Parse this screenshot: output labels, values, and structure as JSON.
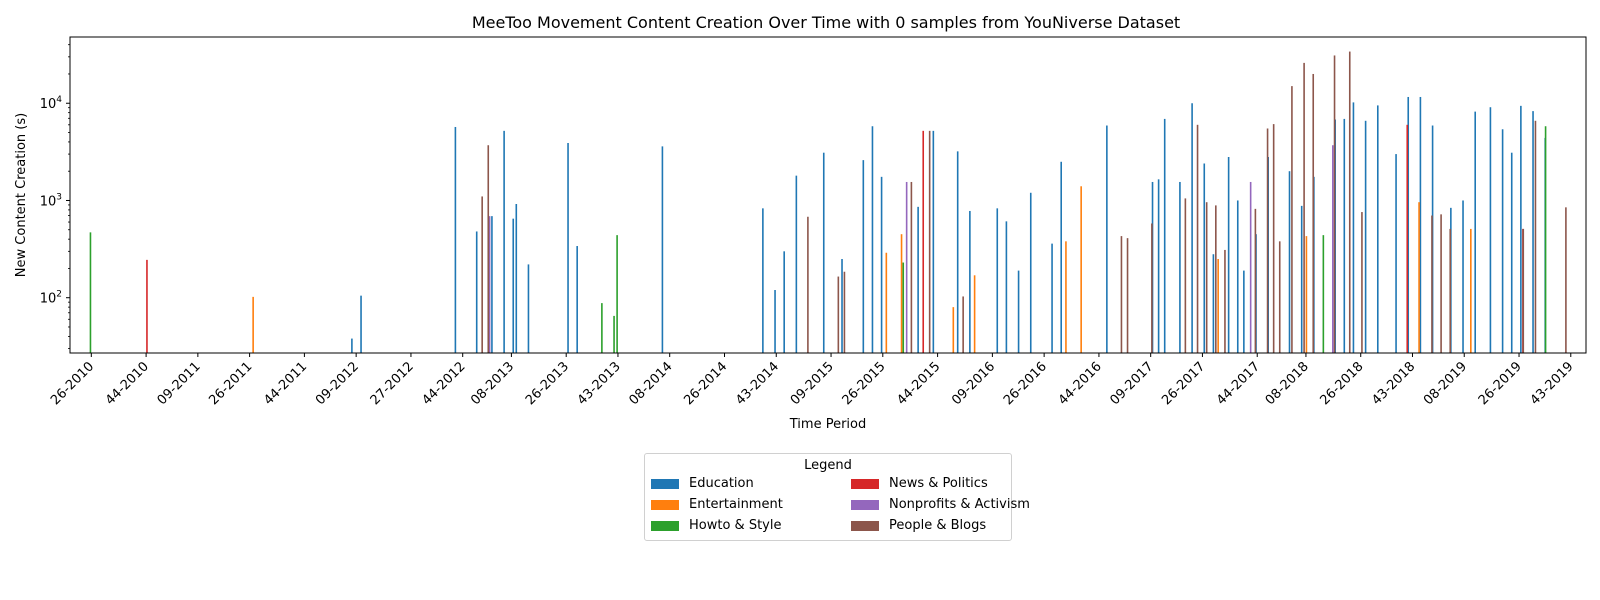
{
  "colors": {
    "Education": "#1f77b4",
    "Entertainment": "#ff7f0e",
    "Howto & Style": "#2ca02c",
    "News & Politics": "#d62728",
    "Nonprofits & Activism": "#9467bd",
    "People & Blogs": "#8c564b"
  },
  "chart_data": {
    "type": "bar",
    "title": "MeeToo Movement Content Creation Over Time with 0 samples from YouNiverse Dataset",
    "xlabel": "Time Period",
    "ylabel": "New Content Creation (s)",
    "yscale": "log",
    "ylim": [
      27,
      48000
    ],
    "yticks": [
      {
        "value": 100,
        "base": "10",
        "exp": "2"
      },
      {
        "value": 1000,
        "base": "10",
        "exp": "3"
      },
      {
        "value": 10000,
        "base": "10",
        "exp": "4"
      }
    ],
    "x_start": "2010-05-10",
    "x_end": "2019-11-25",
    "xticks": [
      {
        "label": "26-2010",
        "date": "2010-06-28"
      },
      {
        "label": "44-2010",
        "date": "2010-11-01"
      },
      {
        "label": "09-2011",
        "date": "2011-02-28"
      },
      {
        "label": "26-2011",
        "date": "2011-06-27"
      },
      {
        "label": "44-2011",
        "date": "2011-10-31"
      },
      {
        "label": "09-2012",
        "date": "2012-02-27"
      },
      {
        "label": "27-2012",
        "date": "2012-07-02"
      },
      {
        "label": "44-2012",
        "date": "2012-10-29"
      },
      {
        "label": "08-2013",
        "date": "2013-02-18"
      },
      {
        "label": "26-2013",
        "date": "2013-06-24"
      },
      {
        "label": "43-2013",
        "date": "2013-10-21"
      },
      {
        "label": "08-2014",
        "date": "2014-02-17"
      },
      {
        "label": "26-2014",
        "date": "2014-06-23"
      },
      {
        "label": "43-2014",
        "date": "2014-10-20"
      },
      {
        "label": "09-2015",
        "date": "2015-02-23"
      },
      {
        "label": "26-2015",
        "date": "2015-06-22"
      },
      {
        "label": "44-2015",
        "date": "2015-10-26"
      },
      {
        "label": "09-2016",
        "date": "2016-02-29"
      },
      {
        "label": "26-2016",
        "date": "2016-06-27"
      },
      {
        "label": "44-2016",
        "date": "2016-10-31"
      },
      {
        "label": "09-2017",
        "date": "2017-02-27"
      },
      {
        "label": "26-2017",
        "date": "2017-06-26"
      },
      {
        "label": "44-2017",
        "date": "2017-10-30"
      },
      {
        "label": "08-2018",
        "date": "2018-02-19"
      },
      {
        "label": "26-2018",
        "date": "2018-06-25"
      },
      {
        "label": "43-2018",
        "date": "2018-10-22"
      },
      {
        "label": "08-2019",
        "date": "2019-02-18"
      },
      {
        "label": "26-2019",
        "date": "2019-06-24"
      },
      {
        "label": "43-2019",
        "date": "2019-10-21"
      }
    ],
    "legend_title": "Legend",
    "legend_placement": "below chart, center",
    "series": [
      {
        "name": "Education",
        "points": [
          [
            "2012-02-27",
            38
          ],
          [
            "2012-03-19",
            105
          ],
          [
            "2012-10-22",
            5700
          ],
          [
            "2012-12-10",
            480
          ],
          [
            "2013-01-14",
            690
          ],
          [
            "2013-02-11",
            5200
          ],
          [
            "2013-03-04",
            650
          ],
          [
            "2013-03-11",
            920
          ],
          [
            "2013-04-08",
            220
          ],
          [
            "2013-07-08",
            3900
          ],
          [
            "2013-07-29",
            340
          ],
          [
            "2014-02-10",
            3600
          ],
          [
            "2014-09-29",
            830
          ],
          [
            "2014-10-27",
            120
          ],
          [
            "2014-11-17",
            300
          ],
          [
            "2014-12-15",
            1800
          ],
          [
            "2015-02-16",
            3100
          ],
          [
            "2015-03-30",
            250
          ],
          [
            "2015-05-18",
            2600
          ],
          [
            "2015-06-08",
            5800
          ],
          [
            "2015-06-29",
            1750
          ],
          [
            "2015-09-21",
            860
          ],
          [
            "2015-10-26",
            5200
          ],
          [
            "2015-12-21",
            3200
          ],
          [
            "2016-01-18",
            780
          ],
          [
            "2016-03-21",
            830
          ],
          [
            "2016-04-11",
            610
          ],
          [
            "2016-05-09",
            190
          ],
          [
            "2016-06-06",
            1200
          ],
          [
            "2016-07-25",
            360
          ],
          [
            "2016-08-15",
            2500
          ],
          [
            "2016-11-28",
            5900
          ],
          [
            "2017-03-13",
            1550
          ],
          [
            "2017-03-27",
            1650
          ],
          [
            "2017-04-10",
            6900
          ],
          [
            "2017-05-15",
            1550
          ],
          [
            "2017-06-12",
            10000
          ],
          [
            "2017-07-10",
            2400
          ],
          [
            "2017-07-31",
            280
          ],
          [
            "2017-09-04",
            2800
          ],
          [
            "2017-09-25",
            1000
          ],
          [
            "2017-10-09",
            190
          ],
          [
            "2017-11-06",
            450
          ],
          [
            "2017-12-04",
            2800
          ],
          [
            "2018-01-22",
            2000
          ],
          [
            "2018-02-19",
            880
          ],
          [
            "2018-03-19",
            1750
          ],
          [
            "2018-05-07",
            6800
          ],
          [
            "2018-05-28",
            6900
          ],
          [
            "2018-06-18",
            10200
          ],
          [
            "2018-07-16",
            6600
          ],
          [
            "2018-08-13",
            9500
          ],
          [
            "2018-09-24",
            3000
          ],
          [
            "2018-10-22",
            11600
          ],
          [
            "2018-11-19",
            11600
          ],
          [
            "2018-12-17",
            5900
          ],
          [
            "2019-01-28",
            840
          ],
          [
            "2019-02-25",
            1000
          ],
          [
            "2019-03-25",
            8200
          ],
          [
            "2019-04-29",
            9100
          ],
          [
            "2019-05-27",
            5400
          ],
          [
            "2019-06-17",
            3100
          ],
          [
            "2019-07-08",
            9400
          ],
          [
            "2019-08-05",
            8300
          ],
          [
            "2019-09-02",
            4400
          ]
        ]
      },
      {
        "name": "Entertainment",
        "points": [
          [
            "2011-07-11",
            102
          ],
          [
            "2015-07-06",
            290
          ],
          [
            "2015-08-10",
            450
          ],
          [
            "2015-12-07",
            80
          ],
          [
            "2016-01-25",
            170
          ],
          [
            "2016-08-22",
            380
          ],
          [
            "2016-09-26",
            1400
          ],
          [
            "2017-08-07",
            250
          ],
          [
            "2018-02-26",
            430
          ],
          [
            "2018-11-12",
            960
          ],
          [
            "2019-03-11",
            510
          ]
        ]
      },
      {
        "name": "Howto & Style",
        "points": [
          [
            "2010-06-28",
            470
          ],
          [
            "2013-09-16",
            88
          ],
          [
            "2013-10-14",
            65
          ],
          [
            "2013-10-21",
            440
          ],
          [
            "2015-08-10",
            230
          ],
          [
            "2018-04-02",
            440
          ],
          [
            "2019-08-26",
            5800
          ]
        ]
      },
      {
        "name": "News & Politics",
        "points": [
          [
            "2010-11-01",
            245
          ],
          [
            "2015-09-21",
            5200
          ],
          [
            "2018-10-08",
            6000
          ],
          [
            "2019-07-01",
            510
          ]
        ]
      },
      {
        "name": "Nonprofits & Activism",
        "points": [
          [
            "2012-12-24",
            690
          ],
          [
            "2015-08-10",
            1550
          ],
          [
            "2017-10-09",
            1550
          ],
          [
            "2018-04-16",
            3700
          ]
        ]
      },
      {
        "name": "People & Blogs",
        "points": [
          [
            "2012-12-03",
            1100
          ],
          [
            "2012-12-17",
            3700
          ],
          [
            "2014-12-22",
            680
          ],
          [
            "2015-03-02",
            165
          ],
          [
            "2015-03-16",
            185
          ],
          [
            "2015-08-17",
            1550
          ],
          [
            "2015-09-28",
            5200
          ],
          [
            "2015-12-14",
            103
          ],
          [
            "2016-12-12",
            430
          ],
          [
            "2016-12-26",
            410
          ],
          [
            "2017-02-20",
            580
          ],
          [
            "2017-05-08",
            1050
          ],
          [
            "2017-06-05",
            6000
          ],
          [
            "2017-06-26",
            960
          ],
          [
            "2017-07-17",
            890
          ],
          [
            "2017-08-07",
            310
          ],
          [
            "2017-10-16",
            820
          ],
          [
            "2017-11-13",
            5500
          ],
          [
            "2017-11-27",
            6100
          ],
          [
            "2017-12-11",
            380
          ],
          [
            "2018-01-08",
            15000
          ],
          [
            "2018-02-05",
            26000
          ],
          [
            "2018-02-26",
            20000
          ],
          [
            "2018-04-16",
            31000
          ],
          [
            "2018-05-21",
            34000
          ],
          [
            "2018-06-18",
            760
          ],
          [
            "2018-11-26",
            700
          ],
          [
            "2018-12-17",
            720
          ],
          [
            "2019-01-07",
            510
          ],
          [
            "2019-06-24",
            510
          ],
          [
            "2019-07-22",
            6600
          ],
          [
            "2019-09-30",
            850
          ]
        ]
      }
    ]
  }
}
